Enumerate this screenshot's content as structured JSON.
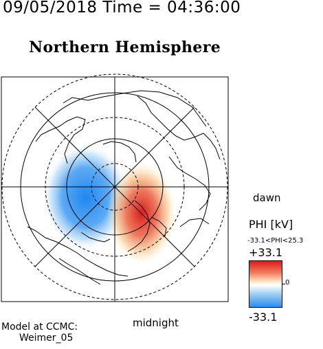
{
  "header": {
    "text": "09/05/2018 Time = 04:36:00"
  },
  "map": {
    "title": "Northern Hemisphere",
    "label_dawn": "dawn",
    "label_midnight": "midnight",
    "projection": "polar",
    "colors": {
      "negative": "#1e87f0",
      "positive": "#d91c1c",
      "neutral": "#ffffff"
    }
  },
  "scale": {
    "title": "PHI [kV]",
    "range_text": "-33.1<PHI<25.3",
    "max_label": "+33.1",
    "zero_label": "0",
    "min_label": "-33.1"
  },
  "model": {
    "line1": "Model at CCMC:",
    "line2": "Weimer_05"
  }
}
